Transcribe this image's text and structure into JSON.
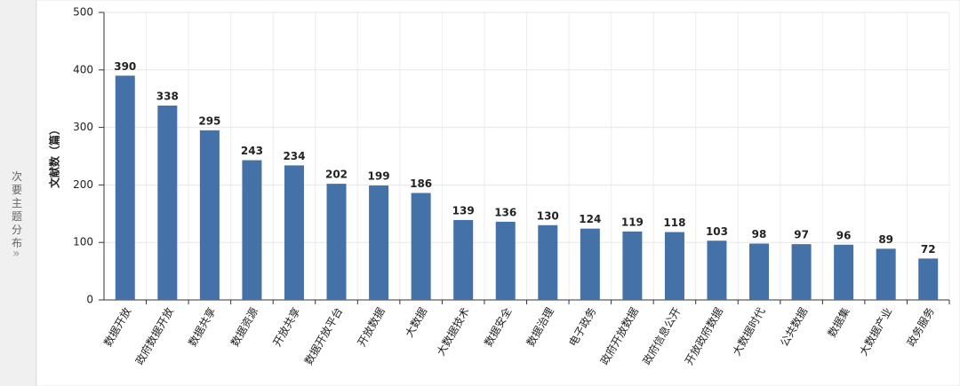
{
  "sidebar": {
    "label": "次要主题分布"
  },
  "chart_data": {
    "type": "bar",
    "ylabel": "文献数（篇）",
    "categories": [
      "数据开放",
      "政府数据开放",
      "数据共享",
      "数据资源",
      "开放共享",
      "数据开放平台",
      "开放数据",
      "大数据",
      "大数据技术",
      "数据安全",
      "数据治理",
      "电子政务",
      "政府开放数据",
      "政府信息公开",
      "开放政府数据",
      "大数据时代",
      "公共数据",
      "数据集",
      "大数据产业",
      "政务服务"
    ],
    "values": [
      390,
      338,
      295,
      243,
      234,
      202,
      199,
      186,
      139,
      136,
      130,
      124,
      119,
      118,
      103,
      98,
      97,
      96,
      89,
      72
    ],
    "color": "#4472a8",
    "ylim": [
      0,
      500
    ],
    "yticks": [
      0,
      100,
      200,
      300,
      400,
      500
    ],
    "grid": true
  }
}
